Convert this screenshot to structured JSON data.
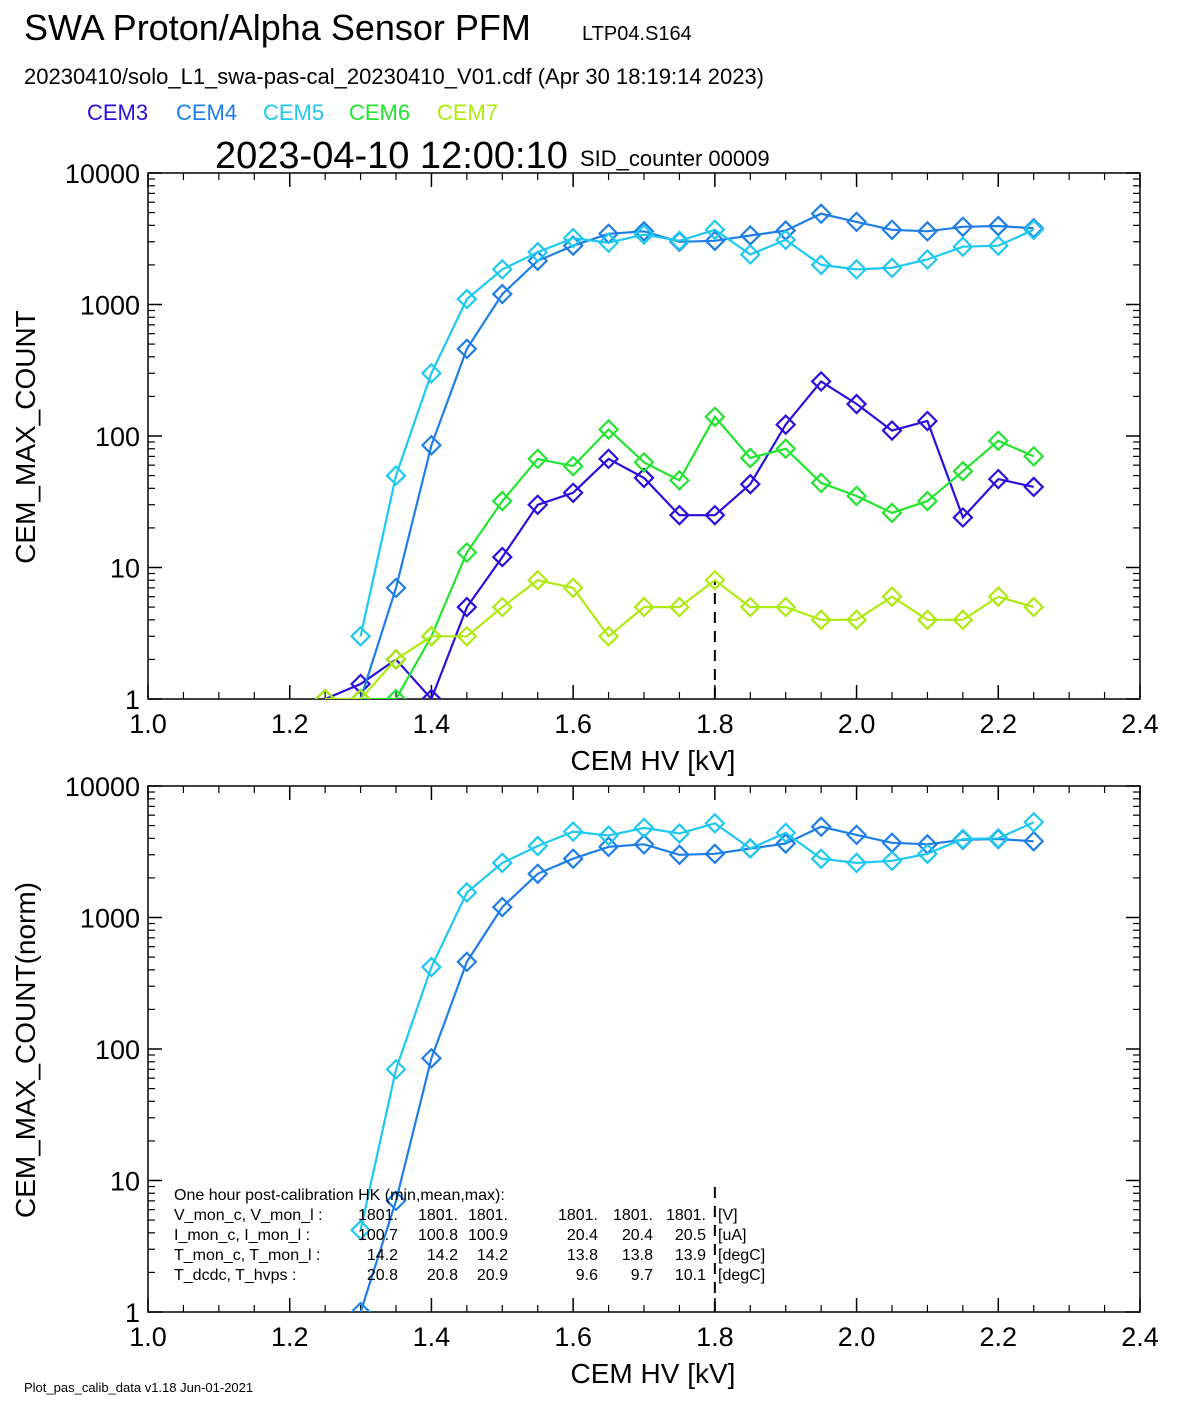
{
  "header": {
    "title": "SWA Proton/Alpha Sensor PFM",
    "subtitle": "LTP04.S164",
    "file_line": "20230410/solo_L1_swa-pas-cal_20230410_V01.cdf  (Apr 30 18:19:14 2023)",
    "timestamp": "2023-04-10 12:00:10",
    "sid": "SID_counter 00009"
  },
  "legend": [
    {
      "label": "CEM3",
      "color": "#2a10d8"
    },
    {
      "label": "CEM4",
      "color": "#1e7ee6"
    },
    {
      "label": "CEM5",
      "color": "#1ec8ee"
    },
    {
      "label": "CEM6",
      "color": "#22e42e"
    },
    {
      "label": "CEM7",
      "color": "#aeea10"
    }
  ],
  "colors": {
    "CEM3": "#2a10d8",
    "CEM4": "#1e7ee6",
    "CEM5": "#1ec8ee",
    "CEM6": "#22e42e",
    "CEM7": "#aeea10"
  },
  "chart_data": [
    {
      "type": "line",
      "xlabel": "CEM HV [kV]",
      "ylabel": "CEM_MAX_COUNT",
      "xlim": [
        1.0,
        2.4
      ],
      "ylim": [
        1,
        10000
      ],
      "yscale": "log",
      "x_ticks": [
        "1.0",
        "1.2",
        "1.4",
        "1.6",
        "1.8",
        "2.0",
        "2.2",
        "2.4"
      ],
      "y_ticks": [
        "1",
        "10",
        "100",
        "1000",
        "10000"
      ],
      "marker": "diamond",
      "vline_x": 1.8,
      "vline_from": 1,
      "vline_to": 8,
      "series": [
        {
          "name": "CEM3",
          "color": "#2a10d8",
          "x": [
            1.25,
            1.3,
            1.35,
            1.4,
            1.45,
            1.5,
            1.55,
            1.6,
            1.65,
            1.7,
            1.75,
            1.8,
            1.85,
            1.9,
            1.95,
            2.0,
            2.05,
            2.1,
            2.15,
            2.2,
            2.25
          ],
          "y": [
            1,
            1.3,
            2,
            1,
            5,
            12,
            30,
            37,
            67,
            48,
            25,
            25,
            43,
            122,
            260,
            175,
            110,
            130,
            24,
            47,
            41
          ]
        },
        {
          "name": "CEM4",
          "color": "#1e7ee6",
          "x": [
            1.3,
            1.35,
            1.4,
            1.45,
            1.5,
            1.55,
            1.6,
            1.65,
            1.7,
            1.75,
            1.8,
            1.85,
            1.9,
            1.95,
            2.0,
            2.05,
            2.1,
            2.15,
            2.2,
            2.25
          ],
          "y": [
            1,
            7,
            85,
            460,
            1200,
            2150,
            2800,
            3450,
            3600,
            3000,
            3050,
            3350,
            3650,
            4900,
            4250,
            3700,
            3600,
            3900,
            3950,
            3800
          ]
        },
        {
          "name": "CEM5",
          "color": "#1ec8ee",
          "x": [
            1.3,
            1.35,
            1.4,
            1.45,
            1.5,
            1.55,
            1.6,
            1.65,
            1.7,
            1.75,
            1.8,
            1.85,
            1.9,
            1.95,
            2.0,
            2.05,
            2.1,
            2.15,
            2.2,
            2.25
          ],
          "y": [
            3,
            50,
            300,
            1100,
            1850,
            2500,
            3200,
            2950,
            3400,
            3050,
            3700,
            2400,
            3100,
            2000,
            1850,
            1900,
            2200,
            2750,
            2800,
            3700
          ]
        },
        {
          "name": "CEM6",
          "color": "#22e42e",
          "x": [
            1.25,
            1.3,
            1.35,
            1.4,
            1.45,
            1.5,
            1.55,
            1.6,
            1.65,
            1.7,
            1.75,
            1.8,
            1.85,
            1.9,
            1.95,
            2.0,
            2.05,
            2.1,
            2.15,
            2.2,
            2.25
          ],
          "y": [
            1,
            1,
            1,
            3,
            13,
            32,
            67,
            59,
            112,
            63,
            46,
            140,
            68,
            80,
            44,
            35,
            26,
            32,
            54,
            92,
            70
          ]
        },
        {
          "name": "CEM7",
          "color": "#aeea10",
          "x": [
            1.25,
            1.3,
            1.35,
            1.4,
            1.45,
            1.5,
            1.55,
            1.6,
            1.65,
            1.7,
            1.75,
            1.8,
            1.85,
            1.9,
            1.95,
            2.0,
            2.05,
            2.1,
            2.15,
            2.2,
            2.25
          ],
          "y": [
            1,
            1,
            2,
            3,
            3,
            5,
            8,
            7,
            3,
            5,
            5,
            8,
            5,
            5,
            4,
            4,
            6,
            4,
            4,
            6,
            5
          ]
        }
      ]
    },
    {
      "type": "line",
      "xlabel": "CEM HV [kV]",
      "ylabel": "CEM_MAX_COUNT(norm)",
      "xlim": [
        1.0,
        2.4
      ],
      "ylim": [
        1,
        10000
      ],
      "yscale": "log",
      "x_ticks": [
        "1.0",
        "1.2",
        "1.4",
        "1.6",
        "1.8",
        "2.0",
        "2.2",
        "2.4"
      ],
      "y_ticks": [
        "1",
        "10",
        "100",
        "1000",
        "10000"
      ],
      "marker": "diamond",
      "vline_x": 1.8,
      "vline_from": 1,
      "vline_to": 10,
      "series": [
        {
          "name": "CEM4",
          "color": "#1e7ee6",
          "x": [
            1.3,
            1.35,
            1.4,
            1.45,
            1.5,
            1.55,
            1.6,
            1.65,
            1.7,
            1.75,
            1.8,
            1.85,
            1.9,
            1.95,
            2.0,
            2.05,
            2.1,
            2.15,
            2.2,
            2.25
          ],
          "y": [
            1,
            7,
            85,
            460,
            1200,
            2150,
            2800,
            3450,
            3600,
            3000,
            3050,
            3350,
            3650,
            4900,
            4250,
            3700,
            3600,
            3900,
            3950,
            3800
          ]
        },
        {
          "name": "CEM5",
          "color": "#1ec8ee",
          "x": [
            1.3,
            1.35,
            1.4,
            1.45,
            1.5,
            1.55,
            1.6,
            1.65,
            1.7,
            1.75,
            1.8,
            1.85,
            1.9,
            1.95,
            2.0,
            2.05,
            2.1,
            2.15,
            2.2,
            2.25
          ],
          "y": [
            4.2,
            70,
            420,
            1550,
            2600,
            3500,
            4500,
            4200,
            4800,
            4350,
            5200,
            3350,
            4400,
            2800,
            2600,
            2700,
            3050,
            3950,
            4000,
            5300
          ]
        }
      ]
    }
  ],
  "housekeeping": {
    "title": "One hour post-calibration HK (min,mean,max):",
    "rows": [
      {
        "label": "V_mon_c, V_mon_l :",
        "v1": "1801.",
        "v2": "1801.",
        "v3": "1801.",
        "v4": "1801.",
        "v5": "1801.",
        "v6": "1801.",
        "unit": "[V]"
      },
      {
        "label": "I_mon_c,  I_mon_l :",
        "v1": "100.7",
        "v2": "100.8",
        "v3": "100.9",
        "v4": "20.4",
        "v5": "20.4",
        "v6": "20.5",
        "unit": "[uA]"
      },
      {
        "label": "T_mon_c, T_mon_l :",
        "v1": "14.2",
        "v2": "14.2",
        "v3": "14.2",
        "v4": "13.8",
        "v5": "13.8",
        "v6": "13.9",
        "unit": "[degC]"
      },
      {
        "label": "T_dcdc,    T_hvps :",
        "v1": "20.8",
        "v2": "20.8",
        "v3": "20.9",
        "v4": "9.6",
        "v5": "9.7",
        "v6": "10.1",
        "unit": "[degC]"
      }
    ]
  },
  "footer": "Plot_pas_calib_data v1.18 Jun-01-2021"
}
